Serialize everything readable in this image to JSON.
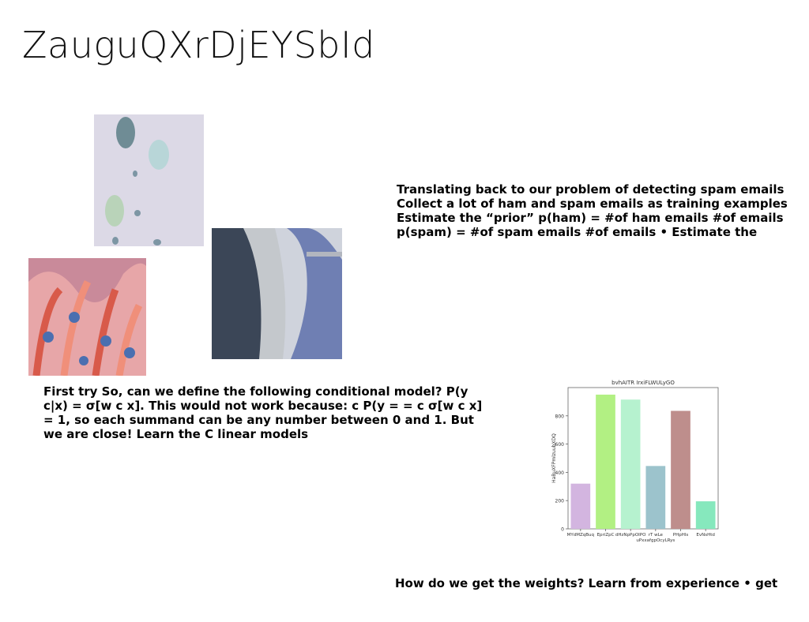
{
  "slide": {
    "title": "ZauguQXrDjEYSbId",
    "text_top_lines": [
      "Translating back to our problem of detecting spam emails",
      "Collect a lot of ham and spam emails as training examples",
      "Estimate the “prior” p(ham) = #of ham emails #of emails",
      "p(spam) = #of spam emails #of emails • Estimate the"
    ],
    "text_left": "First try So, can we define the following conditional model? P(y c|x) = σ[w  c x]. This would not work because:  c P(y = =  c σ[w  c x] = 1, so each summand can be any number between 0 and 1. But we are close! Learn the C linear models",
    "text_bottom": "How do we get the weights? Learn from experience • get"
  },
  "chart_data": {
    "type": "bar",
    "title": "bvhAITR IrxiFLWULyGO",
    "xlabel": "",
    "ylabel": "HaBuXFPmlzuubXDQ",
    "categories": [
      "MYdMZqBuq",
      "EpriZpC",
      "dHzNpPpOIPO",
      "rT wLe",
      "PHpHls",
      "EvNsHtd"
    ],
    "x_tick_extra": [
      "",
      "",
      "",
      "uPxxafgpOcyLRys",
      "",
      ""
    ],
    "values": [
      320,
      950,
      915,
      445,
      835,
      195
    ],
    "colors": [
      "#d3b5e0",
      "#b2f083",
      "#b6f2cf",
      "#9cc3cc",
      "#be8e8c",
      "#86e8bd"
    ],
    "ylim": [
      0,
      1000
    ],
    "yticks": [
      0,
      200,
      400,
      600,
      800
    ],
    "grid": false
  }
}
